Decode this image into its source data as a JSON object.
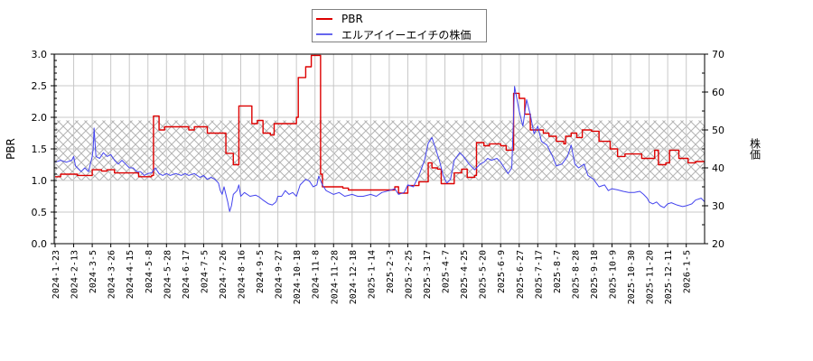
{
  "legend": {
    "items": [
      {
        "label": "PBR",
        "color": "#dd0000"
      },
      {
        "label": "エルアイイーエイチの株価",
        "color": "#4444ee"
      }
    ]
  },
  "axes": {
    "left_label": "PBR",
    "right_label": "株価"
  },
  "chart_data": {
    "type": "line",
    "title": "",
    "xlabel": "",
    "ylabel": "PBR",
    "y2label": "株価",
    "ylim": [
      0.0,
      3.0
    ],
    "y2lim": [
      20,
      70
    ],
    "yticks": [
      "0.0",
      "0.5",
      "1.0",
      "1.5",
      "2.0",
      "2.5",
      "3.0"
    ],
    "y2ticks": [
      "20",
      "30",
      "40",
      "50",
      "60",
      "70"
    ],
    "grid": true,
    "legend_position": "top-center",
    "band": {
      "y_from": 1.0,
      "y_to": 1.95,
      "style": "crosshatch",
      "color": "#c8c8c8"
    },
    "x_tick_labels": [
      "2024-1-23",
      "2024-2-13",
      "2024-3-5",
      "2024-3-26",
      "2024-4-15",
      "2024-5-8",
      "2024-5-28",
      "2024-6-17",
      "2024-7-5",
      "2024-7-26",
      "2024-8-16",
      "2024-9-5",
      "2024-9-27",
      "2024-10-18",
      "2024-11-8",
      "2024-11-28",
      "2024-12-18",
      "2025-1-14",
      "2025-2-3",
      "2025-2-25",
      "2025-3-17",
      "2025-4-7",
      "2025-4-25",
      "2025-5-20",
      "2025-6-9",
      "2025-6-27",
      "2025-7-17",
      "2025-8-7",
      "2025-8-28",
      "2025-9-18",
      "2025-10-9",
      "2025-10-30",
      "2025-11-20",
      "2025-12-11",
      "2026-1-5"
    ],
    "series": [
      {
        "name": "PBR",
        "axis": "left",
        "color": "#dd0000",
        "step": true,
        "points": [
          [
            0,
            1.06
          ],
          [
            0.3,
            1.1
          ],
          [
            1.0,
            1.1
          ],
          [
            1.2,
            1.08
          ],
          [
            1.9,
            1.08
          ],
          [
            2.0,
            1.17
          ],
          [
            2.5,
            1.15
          ],
          [
            2.8,
            1.17
          ],
          [
            3.2,
            1.12
          ],
          [
            4.3,
            1.12
          ],
          [
            4.5,
            1.06
          ],
          [
            5.0,
            1.06
          ],
          [
            5.2,
            1.08
          ],
          [
            5.3,
            2.02
          ],
          [
            5.6,
            1.8
          ],
          [
            5.9,
            1.85
          ],
          [
            7.0,
            1.85
          ],
          [
            7.2,
            1.8
          ],
          [
            7.5,
            1.85
          ],
          [
            8.1,
            1.85
          ],
          [
            8.2,
            1.75
          ],
          [
            9.1,
            1.75
          ],
          [
            9.2,
            1.43
          ],
          [
            9.6,
            1.25
          ],
          [
            9.8,
            1.25
          ],
          [
            9.9,
            2.18
          ],
          [
            10.5,
            2.18
          ],
          [
            10.6,
            1.9
          ],
          [
            10.9,
            1.95
          ],
          [
            11.2,
            1.75
          ],
          [
            11.6,
            1.72
          ],
          [
            11.8,
            1.9
          ],
          [
            12.8,
            1.9
          ],
          [
            13.0,
            2.0
          ],
          [
            13.1,
            2.63
          ],
          [
            13.5,
            2.8
          ],
          [
            13.8,
            2.98
          ],
          [
            14.2,
            2.98
          ],
          [
            14.3,
            1.1
          ],
          [
            14.4,
            0.9
          ],
          [
            15.0,
            0.9
          ],
          [
            15.5,
            0.88
          ],
          [
            15.8,
            0.85
          ],
          [
            17.5,
            0.85
          ],
          [
            18.3,
            0.9
          ],
          [
            18.5,
            0.8
          ],
          [
            18.8,
            0.8
          ],
          [
            19.0,
            0.92
          ],
          [
            19.6,
            0.98
          ],
          [
            20.1,
            1.28
          ],
          [
            20.3,
            1.2
          ],
          [
            20.6,
            1.18
          ],
          [
            20.8,
            0.95
          ],
          [
            21.3,
            0.95
          ],
          [
            21.5,
            1.12
          ],
          [
            21.9,
            1.18
          ],
          [
            22.2,
            1.05
          ],
          [
            22.6,
            1.08
          ],
          [
            22.7,
            1.6
          ],
          [
            23.1,
            1.55
          ],
          [
            23.4,
            1.58
          ],
          [
            24.0,
            1.55
          ],
          [
            24.3,
            1.48
          ],
          [
            24.6,
            1.48
          ],
          [
            24.7,
            2.38
          ],
          [
            25.0,
            2.3
          ],
          [
            25.3,
            2.05
          ],
          [
            25.6,
            1.8
          ],
          [
            26.3,
            1.75
          ],
          [
            26.6,
            1.7
          ],
          [
            27.0,
            1.62
          ],
          [
            27.4,
            1.58
          ],
          [
            27.5,
            1.7
          ],
          [
            27.8,
            1.75
          ],
          [
            28.1,
            1.68
          ],
          [
            28.4,
            1.8
          ],
          [
            28.9,
            1.78
          ],
          [
            29.3,
            1.62
          ],
          [
            29.9,
            1.5
          ],
          [
            30.3,
            1.38
          ],
          [
            30.7,
            1.42
          ],
          [
            31.4,
            1.42
          ],
          [
            31.6,
            1.35
          ],
          [
            32.1,
            1.35
          ],
          [
            32.3,
            1.48
          ],
          [
            32.5,
            1.25
          ],
          [
            32.9,
            1.28
          ],
          [
            33.1,
            1.48
          ],
          [
            33.6,
            1.35
          ],
          [
            34.1,
            1.28
          ],
          [
            34.5,
            1.3
          ],
          [
            35.0,
            1.3
          ]
        ]
      },
      {
        "name": "エルアイイーエイチの株価",
        "axis": "right",
        "color": "#4444ee",
        "step": false,
        "points": [
          [
            0,
            41.5
          ],
          [
            0.3,
            42
          ],
          [
            0.6,
            41.5
          ],
          [
            0.9,
            42
          ],
          [
            1.0,
            43
          ],
          [
            1.1,
            40.5
          ],
          [
            1.4,
            39
          ],
          [
            1.6,
            40
          ],
          [
            1.8,
            39
          ],
          [
            1.9,
            41
          ],
          [
            2.0,
            43
          ],
          [
            2.05,
            45
          ],
          [
            2.1,
            50.5
          ],
          [
            2.2,
            43
          ],
          [
            2.4,
            42.5
          ],
          [
            2.6,
            44
          ],
          [
            2.8,
            43
          ],
          [
            3.0,
            43.5
          ],
          [
            3.2,
            42
          ],
          [
            3.4,
            41
          ],
          [
            3.6,
            42
          ],
          [
            3.8,
            41
          ],
          [
            4.0,
            40
          ],
          [
            4.2,
            40
          ],
          [
            4.4,
            39
          ],
          [
            4.6,
            39
          ],
          [
            4.8,
            38
          ],
          [
            5.0,
            38.5
          ],
          [
            5.2,
            38.7
          ],
          [
            5.4,
            40
          ],
          [
            5.6,
            38.5
          ],
          [
            5.8,
            38
          ],
          [
            6.0,
            38.5
          ],
          [
            6.2,
            38
          ],
          [
            6.5,
            38.5
          ],
          [
            6.8,
            38
          ],
          [
            7.0,
            38.5
          ],
          [
            7.2,
            38
          ],
          [
            7.5,
            38.5
          ],
          [
            7.8,
            37.5
          ],
          [
            8.0,
            38
          ],
          [
            8.2,
            37
          ],
          [
            8.4,
            37.5
          ],
          [
            8.6,
            37
          ],
          [
            8.8,
            36
          ],
          [
            8.9,
            34
          ],
          [
            9.0,
            33
          ],
          [
            9.1,
            35
          ],
          [
            9.3,
            31
          ],
          [
            9.4,
            28.5
          ],
          [
            9.5,
            30
          ],
          [
            9.6,
            33
          ],
          [
            9.8,
            34
          ],
          [
            9.9,
            35.5
          ],
          [
            10.0,
            32.5
          ],
          [
            10.2,
            33.5
          ],
          [
            10.5,
            32.5
          ],
          [
            10.8,
            32.8
          ],
          [
            11.0,
            32.3
          ],
          [
            11.2,
            31.5
          ],
          [
            11.5,
            30.5
          ],
          [
            11.7,
            30.2
          ],
          [
            11.9,
            31
          ],
          [
            12.0,
            32.5
          ],
          [
            12.2,
            32.5
          ],
          [
            12.4,
            34
          ],
          [
            12.6,
            33
          ],
          [
            12.8,
            33.5
          ],
          [
            13.0,
            32.5
          ],
          [
            13.2,
            35.5
          ],
          [
            13.5,
            37
          ],
          [
            13.7,
            36.5
          ],
          [
            13.9,
            35
          ],
          [
            14.1,
            35.5
          ],
          [
            14.2,
            37.8
          ],
          [
            14.4,
            35.5
          ],
          [
            14.6,
            34
          ],
          [
            14.8,
            33.5
          ],
          [
            15.0,
            33
          ],
          [
            15.3,
            33.5
          ],
          [
            15.6,
            32.5
          ],
          [
            16.0,
            33
          ],
          [
            16.3,
            32.5
          ],
          [
            16.6,
            32.5
          ],
          [
            17.0,
            33
          ],
          [
            17.3,
            32.5
          ],
          [
            17.6,
            33.5
          ],
          [
            18.0,
            34
          ],
          [
            18.3,
            34.5
          ],
          [
            18.5,
            33
          ],
          [
            18.8,
            33.5
          ],
          [
            19.0,
            35.5
          ],
          [
            19.3,
            35
          ],
          [
            19.6,
            38
          ],
          [
            19.9,
            42
          ],
          [
            20.1,
            46.5
          ],
          [
            20.3,
            48
          ],
          [
            20.5,
            45
          ],
          [
            20.7,
            42
          ],
          [
            20.9,
            38
          ],
          [
            21.1,
            36
          ],
          [
            21.3,
            37
          ],
          [
            21.5,
            42
          ],
          [
            21.8,
            44
          ],
          [
            22.0,
            43
          ],
          [
            22.3,
            41
          ],
          [
            22.6,
            39.5
          ],
          [
            22.9,
            41
          ],
          [
            23.1,
            41.5
          ],
          [
            23.3,
            42.5
          ],
          [
            23.5,
            42
          ],
          [
            23.8,
            42.5
          ],
          [
            24.0,
            41.5
          ],
          [
            24.2,
            40
          ],
          [
            24.4,
            38.5
          ],
          [
            24.6,
            40
          ],
          [
            24.75,
            61.5
          ],
          [
            25.0,
            55
          ],
          [
            25.2,
            51
          ],
          [
            25.4,
            58
          ],
          [
            25.6,
            54
          ],
          [
            25.8,
            49
          ],
          [
            26.0,
            51
          ],
          [
            26.2,
            47
          ],
          [
            26.5,
            46
          ],
          [
            26.8,
            43
          ],
          [
            27.0,
            40.5
          ],
          [
            27.3,
            41
          ],
          [
            27.6,
            43
          ],
          [
            27.8,
            46
          ],
          [
            28.0,
            41
          ],
          [
            28.2,
            40
          ],
          [
            28.5,
            41
          ],
          [
            28.7,
            38
          ],
          [
            29.0,
            37
          ],
          [
            29.3,
            35
          ],
          [
            29.6,
            35.5
          ],
          [
            29.8,
            34
          ],
          [
            30.0,
            34.5
          ],
          [
            30.3,
            34.2
          ],
          [
            30.6,
            33.8
          ],
          [
            30.9,
            33.5
          ],
          [
            31.2,
            33.5
          ],
          [
            31.5,
            33.8
          ],
          [
            31.7,
            33
          ],
          [
            31.9,
            32
          ],
          [
            32.0,
            31
          ],
          [
            32.2,
            30.5
          ],
          [
            32.4,
            31
          ],
          [
            32.6,
            30
          ],
          [
            32.8,
            29.5
          ],
          [
            33.0,
            30.5
          ],
          [
            33.2,
            30.8
          ],
          [
            33.5,
            30.2
          ],
          [
            33.8,
            29.8
          ],
          [
            34.0,
            30
          ],
          [
            34.3,
            30.5
          ],
          [
            34.5,
            31.5
          ],
          [
            34.8,
            32
          ],
          [
            35.0,
            31
          ]
        ]
      }
    ]
  }
}
